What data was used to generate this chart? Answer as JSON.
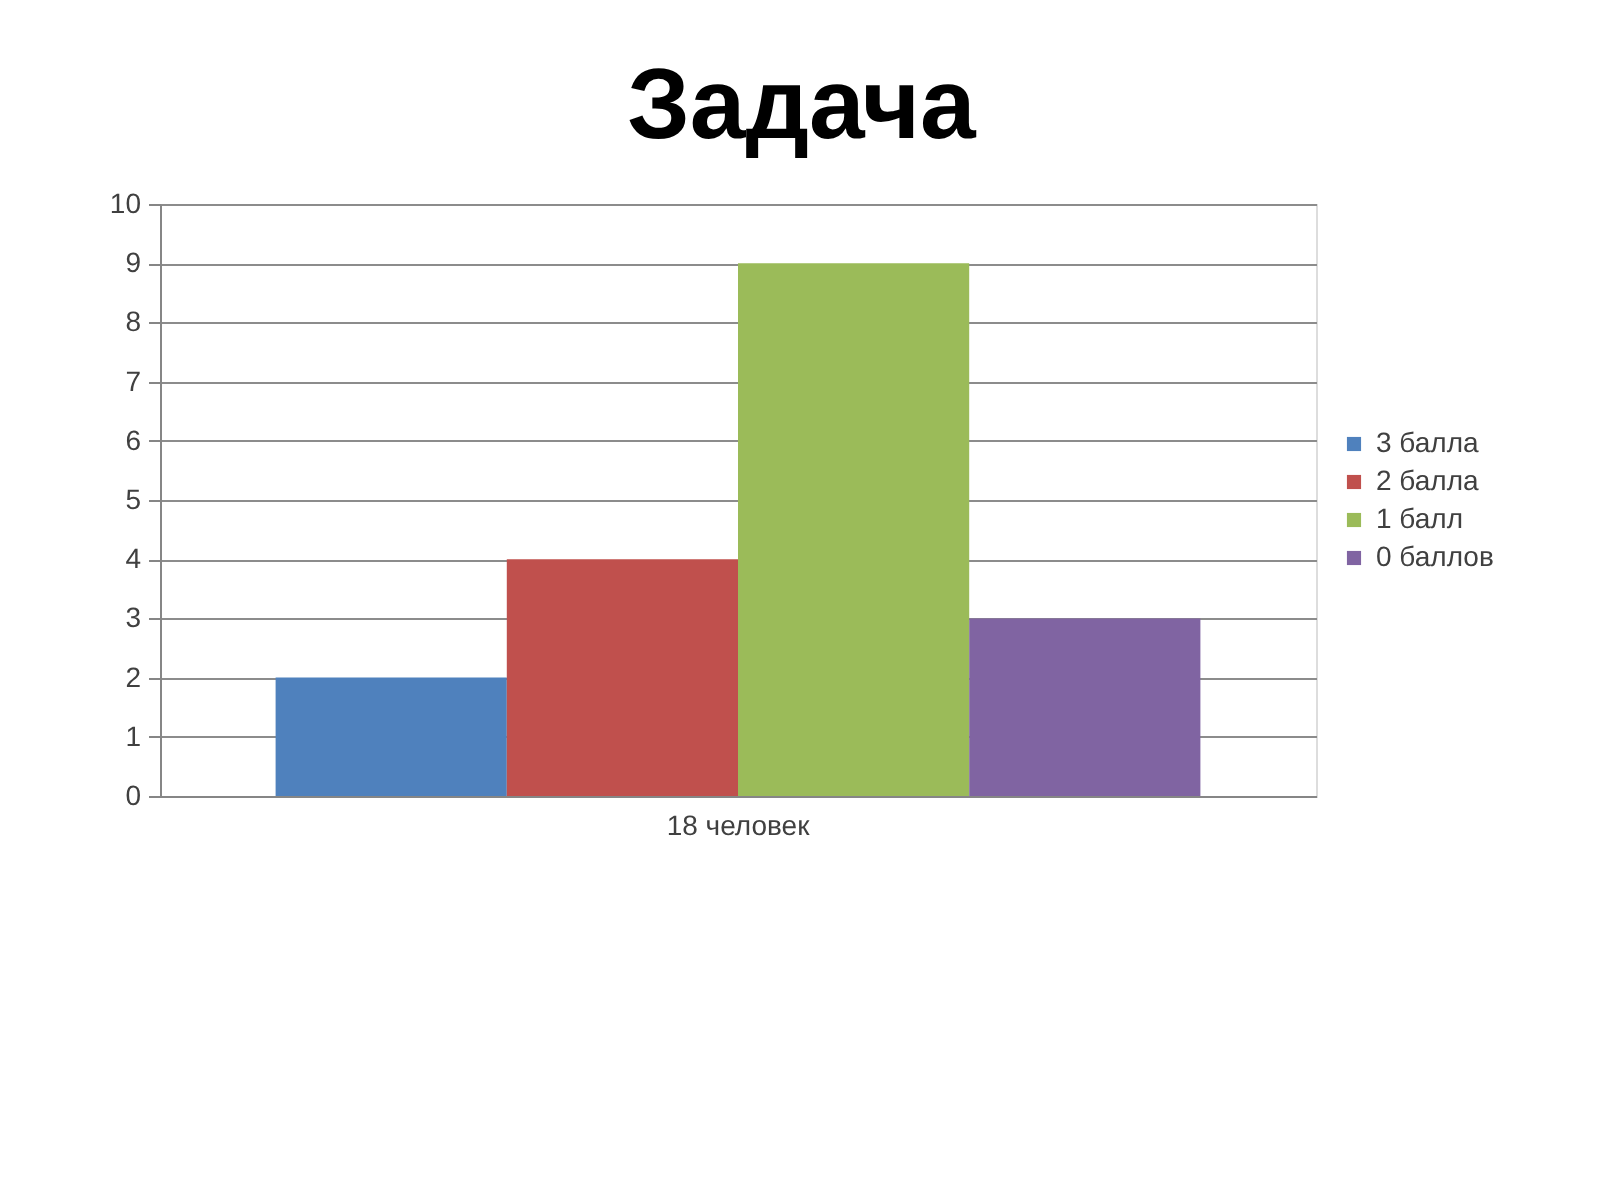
{
  "chart_data": {
    "type": "bar",
    "title": "Задача",
    "categories": [
      "18 человек"
    ],
    "series": [
      {
        "name": "3 балла",
        "color": "#4f81bd",
        "values": [
          2
        ]
      },
      {
        "name": "2 балла",
        "color": "#c0504d",
        "values": [
          4
        ]
      },
      {
        "name": "1 балл",
        "color": "#9bbb59",
        "values": [
          9
        ]
      },
      {
        "name": "0 баллов",
        "color": "#8064a2",
        "values": [
          3
        ]
      }
    ],
    "ylim": [
      0,
      10
    ],
    "yticks": [
      0,
      1,
      2,
      3,
      4,
      5,
      6,
      7,
      8,
      9,
      10
    ],
    "grid": "y",
    "legend": "right"
  }
}
